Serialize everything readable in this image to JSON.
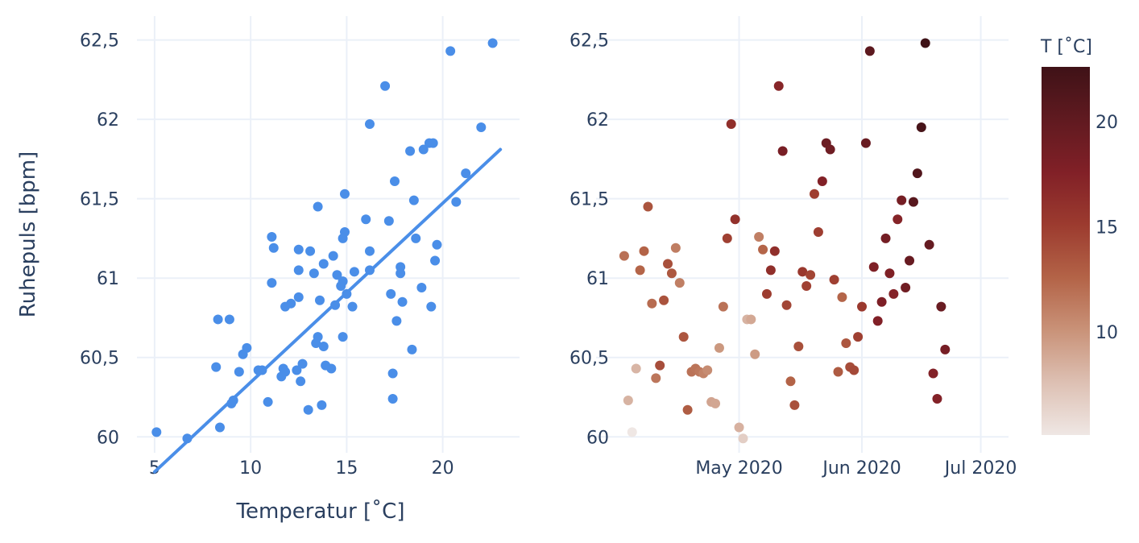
{
  "chart_data": [
    {
      "type": "scatter",
      "xlabel": "Temperatur [˚C]",
      "ylabel": "Ruhepuls [bpm]",
      "xlim": [
        4.5,
        24.0
      ],
      "ylim": [
        59.9,
        62.65
      ],
      "x_ticks": [
        5,
        10,
        15,
        20
      ],
      "x_tick_labels": [
        "5",
        "10",
        "15",
        "20"
      ],
      "y_ticks": [
        60,
        60.5,
        61,
        61.5,
        62,
        62.5
      ],
      "y_tick_labels": [
        "60",
        "60,5",
        "61",
        "61,5",
        "62",
        "62,5"
      ],
      "grid": true,
      "marker_color": "#4a8ee8",
      "line_color": "#4a8ee8",
      "series": [
        {
          "type": "scatter",
          "points": [
            [
              5.1,
              60.03
            ],
            [
              6.7,
              59.99
            ],
            [
              8.3,
              60.74
            ],
            [
              8.9,
              60.74
            ],
            [
              8.2,
              60.44
            ],
            [
              8.4,
              60.06
            ],
            [
              9.0,
              60.21
            ],
            [
              9.1,
              60.23
            ],
            [
              9.4,
              60.41
            ],
            [
              9.6,
              60.52
            ],
            [
              9.8,
              60.56
            ],
            [
              10.4,
              60.42
            ],
            [
              10.6,
              60.42
            ],
            [
              10.9,
              60.22
            ],
            [
              11.1,
              61.26
            ],
            [
              11.1,
              60.97
            ],
            [
              11.2,
              61.19
            ],
            [
              11.6,
              60.38
            ],
            [
              11.7,
              60.43
            ],
            [
              11.8,
              60.41
            ],
            [
              11.8,
              60.82
            ],
            [
              12.1,
              60.84
            ],
            [
              12.4,
              60.42
            ],
            [
              12.5,
              60.88
            ],
            [
              12.5,
              61.05
            ],
            [
              12.5,
              61.18
            ],
            [
              12.6,
              60.35
            ],
            [
              12.7,
              60.46
            ],
            [
              13.0,
              60.17
            ],
            [
              13.1,
              61.17
            ],
            [
              13.3,
              61.03
            ],
            [
              13.4,
              60.59
            ],
            [
              13.5,
              61.45
            ],
            [
              13.5,
              60.63
            ],
            [
              13.6,
              60.86
            ],
            [
              13.7,
              60.2
            ],
            [
              13.8,
              61.09
            ],
            [
              13.8,
              60.57
            ],
            [
              13.9,
              60.45
            ],
            [
              14.2,
              60.43
            ],
            [
              14.3,
              61.14
            ],
            [
              14.4,
              60.83
            ],
            [
              14.5,
              61.02
            ],
            [
              14.7,
              60.95
            ],
            [
              14.8,
              61.25
            ],
            [
              14.8,
              60.63
            ],
            [
              14.8,
              60.98
            ],
            [
              14.9,
              61.29
            ],
            [
              14.9,
              61.53
            ],
            [
              15.0,
              60.9
            ],
            [
              15.3,
              60.82
            ],
            [
              15.4,
              61.04
            ],
            [
              16.0,
              61.37
            ],
            [
              16.2,
              61.05
            ],
            [
              16.2,
              61.17
            ],
            [
              16.2,
              61.97
            ],
            [
              17.0,
              62.21
            ],
            [
              17.2,
              61.36
            ],
            [
              17.3,
              60.9
            ],
            [
              17.4,
              60.24
            ],
            [
              17.4,
              60.4
            ],
            [
              17.5,
              61.61
            ],
            [
              17.6,
              60.73
            ],
            [
              17.8,
              61.07
            ],
            [
              17.8,
              61.03
            ],
            [
              17.9,
              60.85
            ],
            [
              18.3,
              61.8
            ],
            [
              18.4,
              60.55
            ],
            [
              18.5,
              61.49
            ],
            [
              18.6,
              61.25
            ],
            [
              18.9,
              60.94
            ],
            [
              19.0,
              61.81
            ],
            [
              19.3,
              61.85
            ],
            [
              19.4,
              60.82
            ],
            [
              19.5,
              61.85
            ],
            [
              19.6,
              61.11
            ],
            [
              19.7,
              61.21
            ],
            [
              20.4,
              62.43
            ],
            [
              20.7,
              61.48
            ],
            [
              21.2,
              61.66
            ],
            [
              22.0,
              61.95
            ],
            [
              22.6,
              62.48
            ]
          ]
        },
        {
          "type": "line",
          "name": "",
          "x": [
            5.0,
            23.0
          ],
          "y": [
            59.78,
            61.81
          ]
        }
      ]
    },
    {
      "type": "scatter",
      "xlim": [
        "2020-04-01",
        "2020-07-08"
      ],
      "ylim": [
        59.9,
        62.65
      ],
      "x_ticks": [
        "2020-05-01",
        "2020-06-01",
        "2020-07-01"
      ],
      "x_tick_labels": [
        "May 2020",
        "Jun 2020",
        "Jul 2020"
      ],
      "y_ticks": [
        60,
        60.5,
        61,
        61.5,
        62,
        62.5
      ],
      "y_tick_labels": [
        "60",
        "60,5",
        "61",
        "61,5",
        "62",
        "62,5"
      ],
      "grid": true,
      "colorbar": {
        "title": "T [˚C]",
        "range": [
          5.1,
          22.6
        ],
        "ticks": [
          10,
          15,
          20
        ],
        "tick_labels": [
          "10",
          "15",
          "20"
        ],
        "colorscale": [
          "#efe7e4",
          "#ddc0b3",
          "#c99278",
          "#b36347",
          "#9c3b2f",
          "#812027",
          "#601a20",
          "#3f1217"
        ]
      },
      "points": [
        [
          "2020-04-02",
          61.14,
          11.9
        ],
        [
          "2020-04-03",
          60.23,
          8.3
        ],
        [
          "2020-04-04",
          60.03,
          5.1
        ],
        [
          "2020-04-05",
          60.43,
          8.2
        ],
        [
          "2020-04-06",
          61.05,
          12.5
        ],
        [
          "2020-04-07",
          61.17,
          12.6
        ],
        [
          "2020-04-08",
          61.45,
          13.5
        ],
        [
          "2020-04-09",
          60.84,
          12.1
        ],
        [
          "2020-04-10",
          60.37,
          11.6
        ],
        [
          "2020-04-11",
          60.45,
          13.9
        ],
        [
          "2020-04-12",
          60.86,
          13.6
        ],
        [
          "2020-04-13",
          61.09,
          13.8
        ],
        [
          "2020-04-14",
          61.03,
          13.3
        ],
        [
          "2020-04-15",
          61.19,
          11.2
        ],
        [
          "2020-04-16",
          60.97,
          11.1
        ],
        [
          "2020-04-17",
          60.63,
          13.4
        ],
        [
          "2020-04-18",
          60.17,
          13.0
        ],
        [
          "2020-04-19",
          60.41,
          11.8
        ],
        [
          "2020-04-20",
          60.43,
          11.7
        ],
        [
          "2020-04-21",
          60.41,
          11.5
        ],
        [
          "2020-04-22",
          60.4,
          10.9
        ],
        [
          "2020-04-23",
          60.42,
          10.4
        ],
        [
          "2020-04-24",
          60.22,
          9.1
        ],
        [
          "2020-04-25",
          60.21,
          9.0
        ],
        [
          "2020-04-26",
          60.56,
          9.8
        ],
        [
          "2020-04-27",
          60.82,
          11.8
        ],
        [
          "2020-04-28",
          61.25,
          14.8
        ],
        [
          "2020-04-29",
          61.97,
          16.2
        ],
        [
          "2020-04-30",
          61.37,
          16.0
        ],
        [
          "2020-05-01",
          60.06,
          8.4
        ],
        [
          "2020-05-02",
          59.99,
          6.7
        ],
        [
          "2020-05-03",
          60.74,
          8.3
        ],
        [
          "2020-05-04",
          60.74,
          8.9
        ],
        [
          "2020-05-05",
          60.52,
          9.6
        ],
        [
          "2020-05-06",
          61.26,
          11.1
        ],
        [
          "2020-05-07",
          61.18,
          12.5
        ],
        [
          "2020-05-08",
          60.9,
          15.0
        ],
        [
          "2020-05-09",
          61.05,
          16.2
        ],
        [
          "2020-05-10",
          61.17,
          16.2
        ],
        [
          "2020-05-11",
          62.21,
          17.0
        ],
        [
          "2020-05-12",
          61.8,
          18.3
        ],
        [
          "2020-05-13",
          60.83,
          14.4
        ],
        [
          "2020-05-14",
          60.35,
          12.6
        ],
        [
          "2020-05-15",
          60.2,
          13.7
        ],
        [
          "2020-05-16",
          60.57,
          13.8
        ],
        [
          "2020-05-17",
          61.04,
          15.4
        ],
        [
          "2020-05-18",
          60.95,
          14.7
        ],
        [
          "2020-05-19",
          61.02,
          14.5
        ],
        [
          "2020-05-20",
          61.53,
          14.9
        ],
        [
          "2020-05-21",
          61.29,
          14.9
        ],
        [
          "2020-05-22",
          61.61,
          17.5
        ],
        [
          "2020-05-23",
          61.85,
          19.3
        ],
        [
          "2020-05-24",
          61.81,
          19.0
        ],
        [
          "2020-05-25",
          60.99,
          14.8
        ],
        [
          "2020-05-26",
          60.41,
          13.1
        ],
        [
          "2020-05-27",
          60.88,
          12.5
        ],
        [
          "2020-05-28",
          60.59,
          13.4
        ],
        [
          "2020-05-29",
          60.44,
          14.0
        ],
        [
          "2020-05-30",
          60.42,
          14.2
        ],
        [
          "2020-05-31",
          60.63,
          14.8
        ],
        [
          "2020-06-01",
          60.82,
          15.3
        ],
        [
          "2020-06-02",
          61.85,
          19.5
        ],
        [
          "2020-06-03",
          62.43,
          20.4
        ],
        [
          "2020-06-04",
          61.07,
          17.8
        ],
        [
          "2020-06-05",
          60.73,
          17.6
        ],
        [
          "2020-06-06",
          60.85,
          17.9
        ],
        [
          "2020-06-07",
          61.25,
          18.6
        ],
        [
          "2020-06-08",
          61.03,
          17.8
        ],
        [
          "2020-06-09",
          60.9,
          17.3
        ],
        [
          "2020-06-10",
          61.37,
          17.2
        ],
        [
          "2020-06-11",
          61.49,
          18.5
        ],
        [
          "2020-06-12",
          60.94,
          18.9
        ],
        [
          "2020-06-13",
          61.11,
          19.6
        ],
        [
          "2020-06-14",
          61.48,
          20.7
        ],
        [
          "2020-06-15",
          61.66,
          21.2
        ],
        [
          "2020-06-16",
          61.95,
          22.0
        ],
        [
          "2020-06-17",
          62.48,
          22.6
        ],
        [
          "2020-06-18",
          61.21,
          19.7
        ],
        [
          "2020-06-19",
          60.4,
          17.4
        ],
        [
          "2020-06-20",
          60.24,
          17.4
        ],
        [
          "2020-06-21",
          60.82,
          19.4
        ],
        [
          "2020-06-22",
          60.55,
          18.4
        ]
      ]
    }
  ]
}
